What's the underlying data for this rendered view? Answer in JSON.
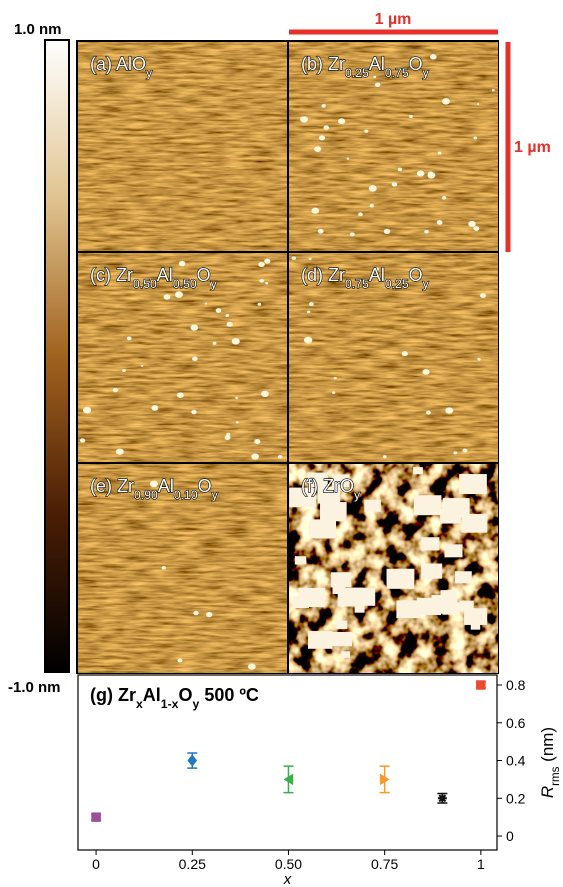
{
  "colorbar": {
    "top_label": "1.0 nm",
    "bottom_label": "-1.0 nm"
  },
  "scale_bars": {
    "horizontal": "1 µm",
    "vertical": "1 µm"
  },
  "panels": [
    {
      "label": [
        "(a) AlO",
        "y"
      ]
    },
    {
      "label": [
        "(b) Zr",
        "0.25",
        "Al",
        "0.75",
        "O",
        "y"
      ]
    },
    {
      "label": [
        "(c) Zr",
        "0.50",
        "Al",
        "0.50",
        "O",
        "y"
      ]
    },
    {
      "label": [
        "(d) Zr",
        "0.75",
        "Al",
        "0.25",
        "O",
        "y"
      ]
    },
    {
      "label": [
        "(e) Zr",
        "0.90",
        "Al",
        "0.10",
        "O",
        "y"
      ]
    },
    {
      "label": [
        "(f) ZrO",
        "y"
      ]
    }
  ],
  "chart_data": {
    "type": "scatter",
    "title": [
      "(g) Zr",
      "x",
      "Al",
      "1-x",
      "O",
      "y",
      " 500 ºC"
    ],
    "x_label": "x",
    "y_label": [
      "R",
      "rms",
      " (nm)"
    ],
    "xlim": [
      -0.047,
      1.042
    ],
    "ylim": [
      -0.074,
      0.853
    ],
    "xticks": [
      0,
      0.25,
      {
        "value": 0.5,
        "label": "0.50"
      },
      0.75,
      1
    ],
    "yticks": [
      0,
      0.2,
      0.4,
      0.6,
      0.8
    ],
    "y_axis_side": "right",
    "points": [
      {
        "x": 0,
        "y": 0.1,
        "err": 0.015,
        "color": "#9c4f9a",
        "marker": "square"
      },
      {
        "x": 0.25,
        "y": 0.4,
        "err": 0.04,
        "color": "#1f78c0",
        "marker": "diamond"
      },
      {
        "x": 0.5,
        "y": 0.3,
        "err": 0.07,
        "color": "#3cae49",
        "marker": "triangle-left"
      },
      {
        "x": 0.75,
        "y": 0.3,
        "err": 0.07,
        "color": "#f59a2a",
        "marker": "triangle-right"
      },
      {
        "x": 0.9,
        "y": 0.2,
        "err": 0.025,
        "color": "#111111",
        "marker": "star"
      },
      {
        "x": 1,
        "y": 0.8,
        "err": 0.015,
        "color": "#ee4a30",
        "marker": "square"
      }
    ]
  }
}
